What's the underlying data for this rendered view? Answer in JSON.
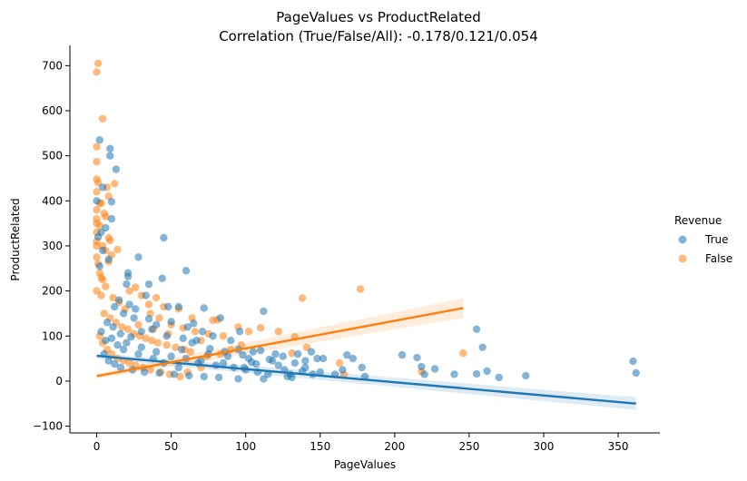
{
  "chart_data": {
    "type": "scatter",
    "title": "PageValues vs ProductRelated",
    "subtitle": "Correlation (True/False/All): -0.178/0.121/0.054",
    "xlabel": "PageValues",
    "ylabel": "ProductRelated",
    "xlim": [
      -18,
      378
    ],
    "ylim": [
      -115,
      745
    ],
    "x_ticks": [
      0,
      50,
      100,
      150,
      200,
      250,
      300,
      350
    ],
    "y_ticks": [
      -100,
      0,
      100,
      200,
      300,
      400,
      500,
      600,
      700
    ],
    "grid": false,
    "legend": {
      "title": "Revenue",
      "placement": "center-right outside"
    },
    "series": [
      {
        "name": "True",
        "color": "#1f77b4",
        "points": [
          [
            2,
            535
          ],
          [
            9,
            516
          ],
          [
            9,
            500
          ],
          [
            13,
            470
          ],
          [
            4,
            430
          ],
          [
            10,
            398
          ],
          [
            10,
            360
          ],
          [
            0,
            400
          ],
          [
            45,
            318
          ],
          [
            28,
            275
          ],
          [
            60,
            245
          ],
          [
            21,
            240
          ],
          [
            21,
            232
          ],
          [
            44,
            228
          ],
          [
            35,
            215
          ],
          [
            20,
            215
          ],
          [
            3,
            330
          ],
          [
            6,
            340
          ],
          [
            1,
            320
          ],
          [
            4,
            290
          ],
          [
            8,
            270
          ],
          [
            2,
            255
          ],
          [
            33,
            190
          ],
          [
            48,
            165
          ],
          [
            26,
            160
          ],
          [
            55,
            165
          ],
          [
            72,
            162
          ],
          [
            112,
            155
          ],
          [
            83,
            140
          ],
          [
            40,
            125
          ],
          [
            61,
            120
          ],
          [
            37,
            115
          ],
          [
            30,
            110
          ],
          [
            71,
            110
          ],
          [
            96,
            110
          ],
          [
            15,
            180
          ],
          [
            22,
            170
          ],
          [
            12,
            165
          ],
          [
            18,
            150
          ],
          [
            25,
            140
          ],
          [
            35,
            138
          ],
          [
            50,
            132
          ],
          [
            65,
            128
          ],
          [
            78,
            100
          ],
          [
            90,
            90
          ],
          [
            95,
            70
          ],
          [
            105,
            65
          ],
          [
            110,
            68
          ],
          [
            120,
            60
          ],
          [
            125,
            55
          ],
          [
            135,
            60
          ],
          [
            140,
            45
          ],
          [
            144,
            65
          ],
          [
            148,
            50
          ],
          [
            133,
            40
          ],
          [
            118,
            45
          ],
          [
            102,
            50
          ],
          [
            88,
            55
          ],
          [
            75,
            60
          ],
          [
            68,
            40
          ],
          [
            80,
            35
          ],
          [
            92,
            30
          ],
          [
            100,
            25
          ],
          [
            108,
            20
          ],
          [
            115,
            15
          ],
          [
            128,
            10
          ],
          [
            130,
            15
          ],
          [
            112,
            5
          ],
          [
            140,
            30
          ],
          [
            150,
            20
          ],
          [
            152,
            50
          ],
          [
            145,
            15
          ],
          [
            160,
            15
          ],
          [
            165,
            25
          ],
          [
            172,
            50
          ],
          [
            178,
            30
          ],
          [
            168,
            58
          ],
          [
            180,
            10
          ],
          [
            205,
            58
          ],
          [
            215,
            52
          ],
          [
            218,
            32
          ],
          [
            220,
            15
          ],
          [
            227,
            27
          ],
          [
            240,
            15
          ],
          [
            255,
            115
          ],
          [
            259,
            75
          ],
          [
            255,
            16
          ],
          [
            262,
            22
          ],
          [
            270,
            8
          ],
          [
            288,
            12
          ],
          [
            360,
            44
          ],
          [
            362,
            18
          ],
          [
            10,
            95
          ],
          [
            20,
            85
          ],
          [
            30,
            75
          ],
          [
            40,
            65
          ],
          [
            50,
            55
          ],
          [
            60,
            50
          ],
          [
            70,
            45
          ],
          [
            85,
            40
          ],
          [
            5,
            60
          ],
          [
            8,
            45
          ],
          [
            12,
            38
          ],
          [
            16,
            30
          ],
          [
            24,
            25
          ],
          [
            32,
            20
          ],
          [
            42,
            18
          ],
          [
            52,
            15
          ],
          [
            62,
            12
          ],
          [
            72,
            10
          ],
          [
            82,
            8
          ],
          [
            95,
            5
          ],
          [
            55,
            30
          ],
          [
            45,
            40
          ],
          [
            38,
            50
          ],
          [
            28,
            60
          ],
          [
            18,
            70
          ],
          [
            14,
            80
          ],
          [
            6,
            90
          ],
          [
            3,
            110
          ],
          [
            7,
            130
          ],
          [
            11,
            120
          ],
          [
            16,
            105
          ],
          [
            23,
            98
          ],
          [
            57,
            70
          ],
          [
            64,
            85
          ],
          [
            76,
            72
          ],
          [
            86,
            65
          ],
          [
            98,
            58
          ],
          [
            104,
            42
          ],
          [
            122,
            35
          ],
          [
            126,
            25
          ],
          [
            47,
            100
          ],
          [
            58,
            95
          ],
          [
            67,
            90
          ],
          [
            99,
            30
          ],
          [
            107,
            38
          ],
          [
            116,
            48
          ],
          [
            131,
            8
          ],
          [
            138,
            22
          ]
        ],
        "regression": {
          "x": [
            0,
            362
          ],
          "y": [
            56,
            -50
          ],
          "ci_half_width": [
            6,
            14
          ]
        }
      },
      {
        "name": "False",
        "color": "#ff7f0e",
        "points": [
          [
            1,
            705
          ],
          [
            0,
            686
          ],
          [
            4,
            582
          ],
          [
            0,
            520
          ],
          [
            0,
            487
          ],
          [
            0,
            448
          ],
          [
            1,
            440
          ],
          [
            7,
            430
          ],
          [
            12,
            438
          ],
          [
            8,
            410
          ],
          [
            0,
            420
          ],
          [
            3,
            395
          ],
          [
            0,
            380
          ],
          [
            5,
            372
          ],
          [
            0,
            360
          ],
          [
            2,
            345
          ],
          [
            0,
            330
          ],
          [
            8,
            318
          ],
          [
            9,
            312
          ],
          [
            0,
            300
          ],
          [
            14,
            292
          ],
          [
            6,
            290
          ],
          [
            10,
            280
          ],
          [
            8,
            265
          ],
          [
            0,
            275
          ],
          [
            2,
            240
          ],
          [
            4,
            225
          ],
          [
            6,
            210
          ],
          [
            0,
            200
          ],
          [
            3,
            190
          ],
          [
            11,
            185
          ],
          [
            15,
            175
          ],
          [
            26,
            208
          ],
          [
            22,
            200
          ],
          [
            30,
            190
          ],
          [
            40,
            185
          ],
          [
            35,
            170
          ],
          [
            45,
            165
          ],
          [
            55,
            160
          ],
          [
            36,
            150
          ],
          [
            42,
            140
          ],
          [
            50,
            125
          ],
          [
            58,
            118
          ],
          [
            66,
            110
          ],
          [
            75,
            105
          ],
          [
            85,
            100
          ],
          [
            64,
            140
          ],
          [
            78,
            135
          ],
          [
            81,
            136
          ],
          [
            95,
            120
          ],
          [
            102,
            110
          ],
          [
            110,
            118
          ],
          [
            122,
            110
          ],
          [
            133,
            98
          ],
          [
            138,
            184
          ],
          [
            177,
            204
          ],
          [
            163,
            40
          ],
          [
            166,
            15
          ],
          [
            218,
            21
          ],
          [
            246,
            62
          ],
          [
            141,
            75
          ],
          [
            131,
            62
          ],
          [
            5,
            150
          ],
          [
            9,
            140
          ],
          [
            13,
            130
          ],
          [
            17,
            120
          ],
          [
            21,
            115
          ],
          [
            25,
            105
          ],
          [
            29,
            100
          ],
          [
            33,
            95
          ],
          [
            37,
            90
          ],
          [
            41,
            85
          ],
          [
            47,
            80
          ],
          [
            53,
            75
          ],
          [
            59,
            70
          ],
          [
            63,
            65
          ],
          [
            2,
            100
          ],
          [
            4,
            85
          ],
          [
            7,
            70
          ],
          [
            10,
            60
          ],
          [
            14,
            50
          ],
          [
            18,
            45
          ],
          [
            22,
            40
          ],
          [
            26,
            35
          ],
          [
            31,
            30
          ],
          [
            36,
            25
          ],
          [
            43,
            20
          ],
          [
            49,
            15
          ],
          [
            56,
            10
          ],
          [
            61,
            20
          ],
          [
            70,
            30
          ],
          [
            74,
            55
          ],
          [
            83,
            60
          ],
          [
            90,
            70
          ],
          [
            97,
            80
          ],
          [
            70,
            90
          ],
          [
            48,
            105
          ],
          [
            38,
            115
          ],
          [
            28,
            125
          ],
          [
            19,
            160
          ],
          [
            3,
            230
          ],
          [
            1,
            260
          ],
          [
            0,
            310
          ],
          [
            0,
            350
          ],
          [
            2,
            395
          ],
          [
            6,
            365
          ],
          [
            4,
            300
          ]
        ],
        "regression": {
          "x": [
            0,
            246
          ],
          "y": [
            11,
            162
          ],
          "ci_half_width": [
            6,
            22
          ]
        }
      }
    ]
  }
}
